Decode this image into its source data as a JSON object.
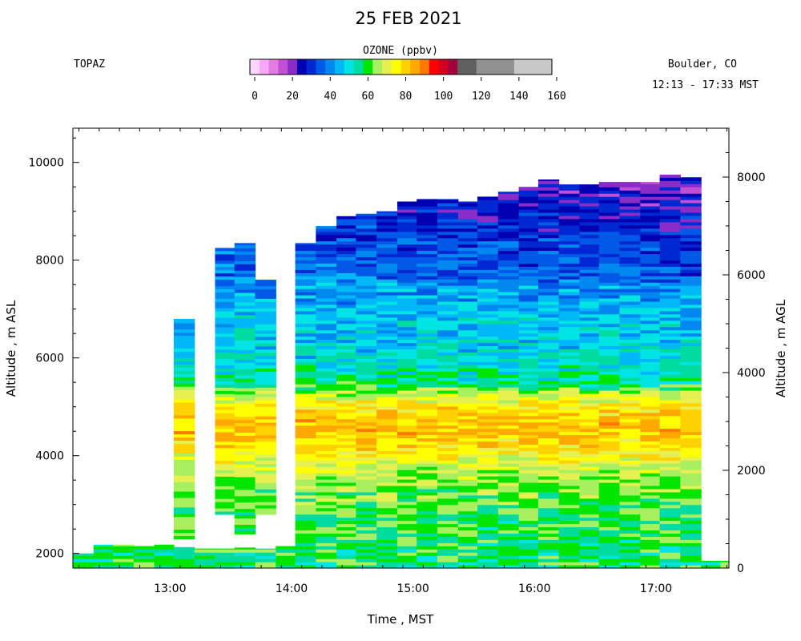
{
  "chart_data": {
    "type": "heatmap",
    "title": "25 FEB 2021",
    "instrument": "TOPAZ",
    "location": "Boulder, CO",
    "time_range": "12:13 - 17:33 MST",
    "colorbar": {
      "title": "OZONE (ppbv)",
      "ticks": [
        0,
        20,
        40,
        60,
        80,
        100,
        120,
        140,
        160
      ],
      "range": [
        0,
        160
      ],
      "segments": [
        {
          "from": 0,
          "to": 5,
          "color": "#ffd6ff"
        },
        {
          "from": 5,
          "to": 10,
          "color": "#f7a8f7"
        },
        {
          "from": 10,
          "to": 15,
          "color": "#e27ce2"
        },
        {
          "from": 15,
          "to": 20,
          "color": "#c24fd6"
        },
        {
          "from": 20,
          "to": 25,
          "color": "#8a2cc8"
        },
        {
          "from": 25,
          "to": 30,
          "color": "#0000b0"
        },
        {
          "from": 30,
          "to": 35,
          "color": "#0028d2"
        },
        {
          "from": 35,
          "to": 40,
          "color": "#0058e6"
        },
        {
          "from": 40,
          "to": 45,
          "color": "#0088f0"
        },
        {
          "from": 45,
          "to": 50,
          "color": "#00b8f8"
        },
        {
          "from": 50,
          "to": 55,
          "color": "#00e4e4"
        },
        {
          "from": 55,
          "to": 60,
          "color": "#00dca0"
        },
        {
          "from": 60,
          "to": 65,
          "color": "#00e600"
        },
        {
          "from": 65,
          "to": 70,
          "color": "#a8f060"
        },
        {
          "from": 70,
          "to": 75,
          "color": "#e6f050"
        },
        {
          "from": 75,
          "to": 80,
          "color": "#ffff00"
        },
        {
          "from": 80,
          "to": 85,
          "color": "#ffd200"
        },
        {
          "from": 85,
          "to": 90,
          "color": "#ffa800"
        },
        {
          "from": 90,
          "to": 95,
          "color": "#ff7800"
        },
        {
          "from": 95,
          "to": 100,
          "color": "#ff0000"
        },
        {
          "from": 100,
          "to": 105,
          "color": "#d2001e"
        },
        {
          "from": 105,
          "to": 110,
          "color": "#a0003c"
        },
        {
          "from": 110,
          "to": 120,
          "color": "#606060"
        },
        {
          "from": 120,
          "to": 140,
          "color": "#909090"
        },
        {
          "from": 140,
          "to": 160,
          "color": "#c8c8c8"
        }
      ]
    },
    "xlabel": "Time , MST",
    "x_ticks": [
      "13:00",
      "14:00",
      "15:00",
      "16:00",
      "17:00"
    ],
    "x_tick_hours": [
      13,
      14,
      15,
      16,
      17
    ],
    "xlim_hours": [
      12.2,
      17.6
    ],
    "ylabel_left": "Altitude , m ASL",
    "y_ticks_left": [
      2000,
      4000,
      6000,
      8000,
      10000
    ],
    "ylim_left": [
      1700,
      10700
    ],
    "ylabel_right": "Altitude , m AGL",
    "y_ticks_right": [
      0,
      2000,
      4000,
      6000,
      8000
    ],
    "surface_elevation_m": 1700,
    "profiles": [
      {
        "start": 12.2,
        "end": 12.37,
        "top": 2000
      },
      {
        "start": 12.37,
        "end": 12.53,
        "top": 2180
      },
      {
        "start": 12.53,
        "end": 12.7,
        "top": 2180
      },
      {
        "start": 12.7,
        "end": 12.87,
        "top": 2150
      },
      {
        "start": 12.87,
        "end": 13.03,
        "top": 2180
      },
      {
        "start": 13.03,
        "end": 13.2,
        "bottom": 2300,
        "top": 6800,
        "lower_top": 2130
      },
      {
        "start": 13.2,
        "end": 13.37,
        "top": 2100
      },
      {
        "start": 13.37,
        "end": 13.53,
        "bottom": 2800,
        "top": 8250,
        "lower_top": 2100
      },
      {
        "start": 13.53,
        "end": 13.7,
        "bottom": 2400,
        "top": 8350,
        "lower_top": 2120
      },
      {
        "start": 13.7,
        "end": 13.87,
        "bottom": 2800,
        "top": 7600,
        "lower_top": 2100
      },
      {
        "start": 13.87,
        "end": 14.03,
        "top": 2150
      },
      {
        "start": 14.03,
        "end": 14.2,
        "top": 8350
      },
      {
        "start": 14.2,
        "end": 14.37,
        "top": 8700
      },
      {
        "start": 14.37,
        "end": 14.53,
        "top": 8900
      },
      {
        "start": 14.53,
        "end": 14.7,
        "top": 8950
      },
      {
        "start": 14.7,
        "end": 14.87,
        "top": 9000
      },
      {
        "start": 14.87,
        "end": 15.03,
        "top": 9200
      },
      {
        "start": 15.03,
        "end": 15.2,
        "top": 9250
      },
      {
        "start": 15.2,
        "end": 15.37,
        "top": 9250
      },
      {
        "start": 15.37,
        "end": 15.53,
        "top": 9200
      },
      {
        "start": 15.53,
        "end": 15.7,
        "top": 9300
      },
      {
        "start": 15.7,
        "end": 15.87,
        "top": 9400
      },
      {
        "start": 15.87,
        "end": 16.03,
        "top": 9500
      },
      {
        "start": 16.03,
        "end": 16.2,
        "top": 9650
      },
      {
        "start": 16.2,
        "end": 16.37,
        "top": 9550
      },
      {
        "start": 16.37,
        "end": 16.53,
        "top": 9550
      },
      {
        "start": 16.53,
        "end": 16.7,
        "top": 9600
      },
      {
        "start": 16.7,
        "end": 16.87,
        "top": 9600
      },
      {
        "start": 16.87,
        "end": 17.03,
        "top": 9600
      },
      {
        "start": 17.03,
        "end": 17.2,
        "top": 9750
      },
      {
        "start": 17.2,
        "end": 17.37,
        "top": 9700
      },
      {
        "start": 17.37,
        "end": 17.53,
        "top": 1850
      },
      {
        "start": 17.53,
        "end": 17.6,
        "top": 1850
      }
    ],
    "vertical_profile_ppbv": [
      {
        "alt": 1700,
        "value": 60
      },
      {
        "alt": 2000,
        "value": 60
      },
      {
        "alt": 2400,
        "value": 62
      },
      {
        "alt": 3000,
        "value": 63
      },
      {
        "alt": 3600,
        "value": 69
      },
      {
        "alt": 4000,
        "value": 76
      },
      {
        "alt": 4300,
        "value": 82
      },
      {
        "alt": 4700,
        "value": 84
      },
      {
        "alt": 5100,
        "value": 76
      },
      {
        "alt": 5500,
        "value": 58
      },
      {
        "alt": 6000,
        "value": 52
      },
      {
        "alt": 6800,
        "value": 48
      },
      {
        "alt": 7600,
        "value": 44
      },
      {
        "alt": 8400,
        "value": 38
      },
      {
        "alt": 9200,
        "value": 32
      },
      {
        "alt": 10000,
        "value": 30
      }
    ]
  }
}
